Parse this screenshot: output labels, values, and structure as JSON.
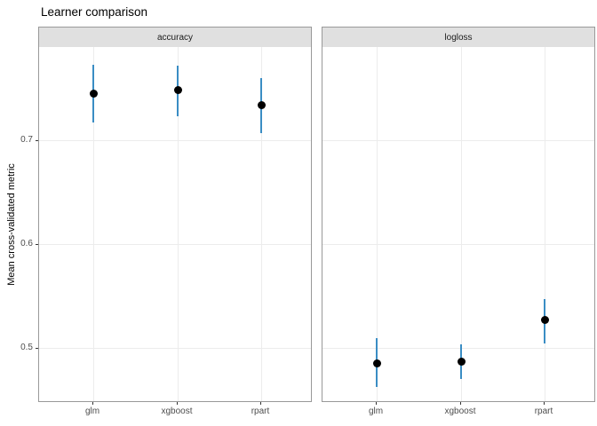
{
  "chart_data": {
    "type": "scatter",
    "title": "Learner comparison",
    "ylabel": "Mean cross-validated metric",
    "xlabel": "",
    "categories": [
      "glm",
      "xgboost",
      "rpart"
    ],
    "yticks": [
      0.5,
      0.6,
      0.7
    ],
    "ylim": [
      0.447,
      0.79
    ],
    "grid": true,
    "legend": "none",
    "facets": [
      {
        "label": "accuracy",
        "points": [
          {
            "learner": "glm",
            "mean": 0.745,
            "lower": 0.717,
            "upper": 0.773
          },
          {
            "learner": "xgboost",
            "mean": 0.748,
            "lower": 0.723,
            "upper": 0.772
          },
          {
            "learner": "rpart",
            "mean": 0.734,
            "lower": 0.707,
            "upper": 0.76
          }
        ]
      },
      {
        "label": "logloss",
        "points": [
          {
            "learner": "glm",
            "mean": 0.485,
            "lower": 0.462,
            "upper": 0.509
          },
          {
            "learner": "xgboost",
            "mean": 0.487,
            "lower": 0.47,
            "upper": 0.503
          },
          {
            "learner": "rpart",
            "mean": 0.527,
            "lower": 0.504,
            "upper": 0.547
          }
        ]
      }
    ],
    "colors": {
      "point": "#000000",
      "errorbar": "#3a8dc4",
      "strip_fill": "#e0e0e0",
      "panel_border": "#999999",
      "gridline": "#ececec",
      "tick_label": "#4d4d4d"
    }
  }
}
